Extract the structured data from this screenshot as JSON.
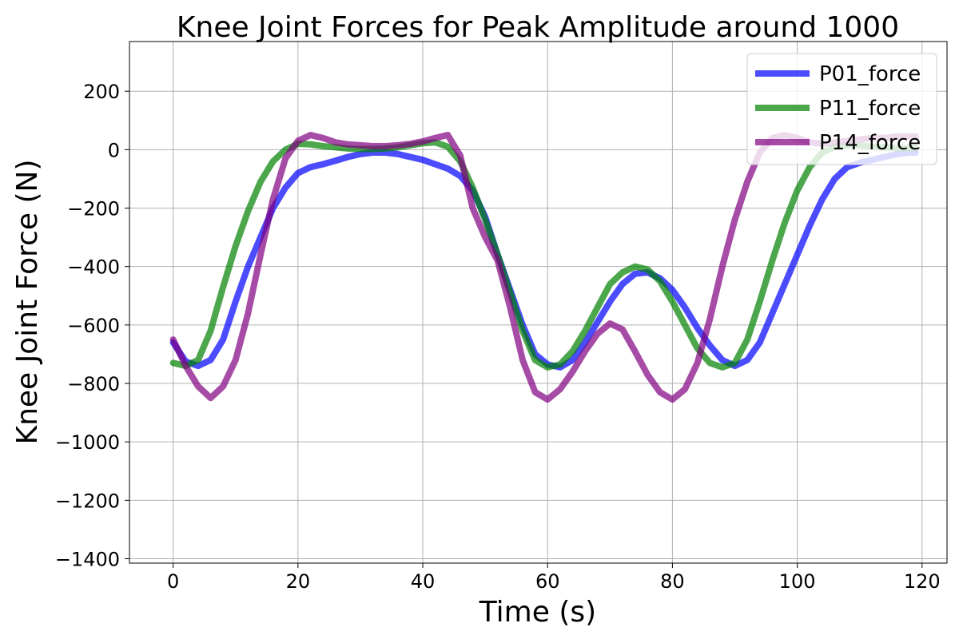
{
  "chart_data": {
    "type": "line",
    "title": "Knee Joint Forces for Peak Amplitude around 1000",
    "xlabel": "Time (s)",
    "ylabel": "Knee Joint Force (N)",
    "xlim": [
      -7,
      124
    ],
    "ylim": [
      -1415,
      370
    ],
    "xticks": [
      0,
      20,
      40,
      60,
      80,
      100,
      120
    ],
    "yticks": [
      -1400,
      -1200,
      -1000,
      -800,
      -600,
      -400,
      -200,
      0,
      200
    ],
    "grid": true,
    "legend_position": "top-right",
    "series": [
      {
        "name": "P01_force",
        "color": "#0000ff",
        "x": [
          0,
          2,
          4,
          6,
          8,
          10,
          12,
          14,
          16,
          18,
          20,
          22,
          24,
          26,
          28,
          30,
          32,
          34,
          36,
          38,
          40,
          42,
          44,
          46,
          48,
          50,
          52,
          54,
          56,
          58,
          60,
          62,
          64,
          66,
          68,
          70,
          72,
          74,
          76,
          78,
          80,
          82,
          84,
          86,
          88,
          90,
          92,
          94,
          96,
          98,
          100,
          102,
          104,
          106,
          108,
          110,
          112,
          114,
          116,
          118,
          119
        ],
        "y": [
          -660,
          -725,
          -740,
          -720,
          -650,
          -520,
          -400,
          -300,
          -200,
          -130,
          -80,
          -60,
          -50,
          -38,
          -25,
          -15,
          -10,
          -10,
          -15,
          -25,
          -35,
          -50,
          -65,
          -90,
          -140,
          -230,
          -360,
          -480,
          -600,
          -700,
          -735,
          -745,
          -720,
          -660,
          -590,
          -520,
          -460,
          -425,
          -420,
          -440,
          -480,
          -540,
          -610,
          -670,
          -720,
          -740,
          -720,
          -660,
          -560,
          -460,
          -360,
          -260,
          -170,
          -100,
          -60,
          -45,
          -35,
          -25,
          -15,
          -10,
          -10
        ]
      },
      {
        "name": "P11_force",
        "color": "#008000",
        "x": [
          0,
          2,
          4,
          6,
          8,
          10,
          12,
          14,
          16,
          18,
          20,
          22,
          24,
          26,
          28,
          30,
          32,
          34,
          36,
          38,
          40,
          42,
          44,
          46,
          48,
          50,
          52,
          54,
          56,
          58,
          60,
          62,
          64,
          66,
          68,
          70,
          72,
          74,
          76,
          78,
          80,
          82,
          84,
          86,
          88,
          90,
          92,
          94,
          96,
          98,
          100,
          102,
          104,
          106,
          108,
          110,
          112,
          114,
          116,
          118,
          119
        ],
        "y": [
          -730,
          -740,
          -720,
          -620,
          -470,
          -330,
          -210,
          -110,
          -40,
          0,
          20,
          18,
          12,
          8,
          4,
          2,
          2,
          4,
          8,
          15,
          22,
          25,
          10,
          -40,
          -130,
          -240,
          -360,
          -490,
          -620,
          -720,
          -745,
          -735,
          -690,
          -620,
          -540,
          -460,
          -420,
          -400,
          -410,
          -450,
          -520,
          -600,
          -680,
          -730,
          -745,
          -730,
          -650,
          -520,
          -380,
          -250,
          -140,
          -60,
          -10,
          10,
          15,
          15,
          10,
          8,
          5,
          5,
          5
        ]
      },
      {
        "name": "P14_force",
        "color": "#800080",
        "x": [
          0,
          2,
          4,
          6,
          8,
          10,
          12,
          14,
          16,
          18,
          20,
          22,
          24,
          26,
          28,
          30,
          32,
          34,
          36,
          38,
          40,
          42,
          44,
          46,
          48,
          50,
          52,
          54,
          56,
          58,
          60,
          62,
          64,
          66,
          68,
          70,
          72,
          74,
          76,
          78,
          80,
          82,
          84,
          86,
          88,
          90,
          92,
          94,
          96,
          98,
          100,
          102,
          104,
          106,
          108,
          110,
          112,
          114,
          116,
          118,
          119
        ],
        "y": [
          -650,
          -740,
          -810,
          -850,
          -810,
          -720,
          -560,
          -360,
          -170,
          -30,
          30,
          50,
          40,
          25,
          18,
          15,
          12,
          12,
          15,
          20,
          28,
          40,
          50,
          -20,
          -200,
          -300,
          -380,
          -540,
          -720,
          -830,
          -855,
          -820,
          -760,
          -690,
          -630,
          -595,
          -615,
          -690,
          -770,
          -830,
          -855,
          -820,
          -730,
          -580,
          -400,
          -240,
          -110,
          -10,
          40,
          50,
          40,
          25,
          20,
          25,
          30,
          35,
          40,
          40,
          45,
          45,
          45
        ]
      }
    ]
  }
}
